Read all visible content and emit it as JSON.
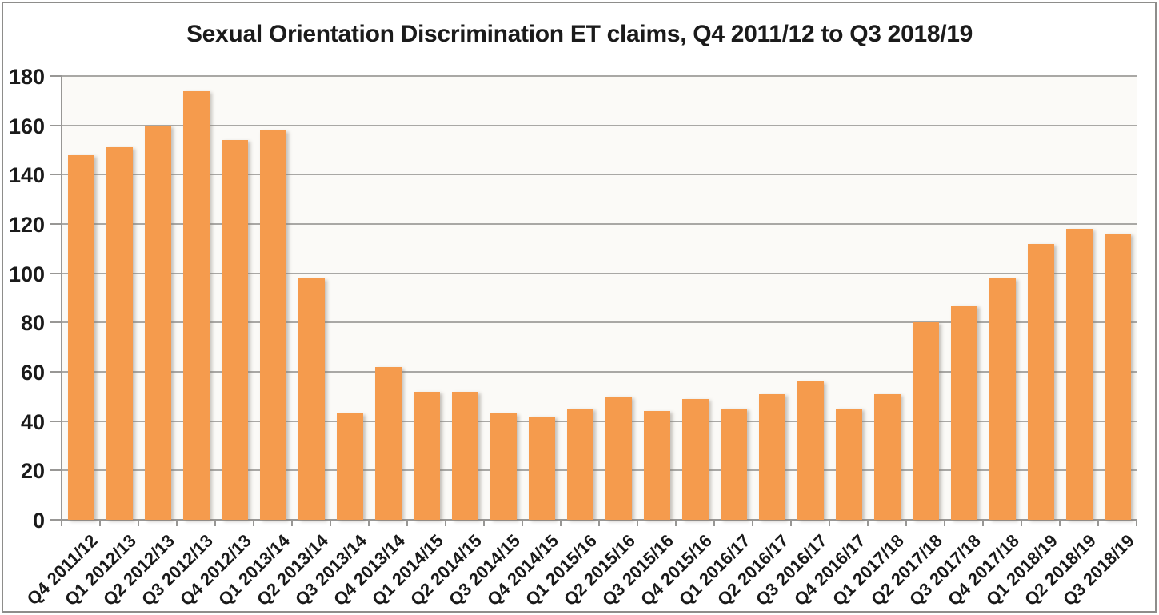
{
  "chart_data": {
    "type": "bar",
    "title": "Sexual Orientation Discrimination ET claims, Q4 2011/12 to Q3 2018/19",
    "categories": [
      "Q4 2011/12",
      "Q1 2012/13",
      "Q2 2012/13",
      "Q3 2012/13",
      "Q4 2012/13",
      "Q1 2013/14",
      "Q2 2013/14",
      "Q3 2013/14",
      "Q4 2013/14",
      "Q1 2014/15",
      "Q2 2014/15",
      "Q3 2014/15",
      "Q4 2014/15",
      "Q1 2015/16",
      "Q2 2015/16",
      "Q3 2015/16",
      "Q4 2015/16",
      "Q1 2016/17",
      "Q2 2016/17",
      "Q3 2016/17",
      "Q4 2016/17",
      "Q1 2017/18",
      "Q2 2017/18",
      "Q3 2017/18",
      "Q4 2017/18",
      "Q1 2018/19",
      "Q2 2018/19",
      "Q3 2018/19"
    ],
    "values": [
      148,
      151,
      160,
      174,
      154,
      158,
      98,
      43,
      62,
      52,
      52,
      43,
      42,
      45,
      50,
      44,
      49,
      45,
      51,
      56,
      45,
      51,
      80,
      87,
      98,
      112,
      118,
      116
    ],
    "xlabel": "",
    "ylabel": "",
    "ylim": [
      0,
      180
    ],
    "yticks": [
      0,
      20,
      40,
      60,
      80,
      100,
      120,
      140,
      160,
      180
    ],
    "grid": true,
    "legend": "none",
    "colors": {
      "bar": "#f59b4d",
      "gridline": "#a9a8a5",
      "axis": "#989795",
      "plot_bg": "#fbfaf7",
      "text": "#1a1a1a",
      "frame_border": "#8e8d8b"
    }
  }
}
